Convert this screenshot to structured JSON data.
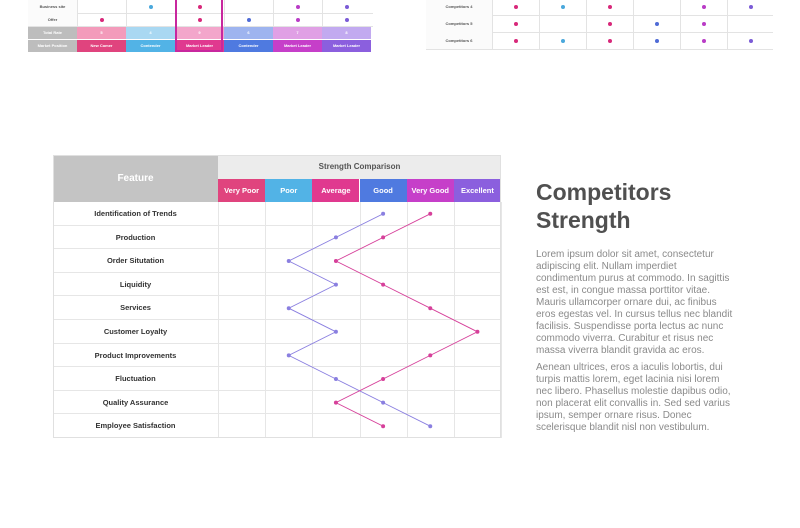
{
  "top_left_table": {
    "rows": [
      {
        "label": "Business site",
        "dots": [
          null,
          "#4aa8dc",
          "#d8287a",
          null,
          "#b93cc6",
          "#7b5bd6"
        ]
      },
      {
        "label": "Offer",
        "dots": [
          "#d8287a",
          null,
          "#d8287a",
          "#4f6bd6",
          "#b93cc6",
          "#7b5bd6"
        ]
      }
    ],
    "total_rate": {
      "label": "Total Rate",
      "values": [
        "5",
        "4",
        "9",
        "6",
        "7",
        "8"
      ]
    },
    "market_position": {
      "label": "Market Position",
      "values": [
        "New Comer",
        "Contender",
        "Market Leader",
        "Contender",
        "Market Leader",
        "Market Leader"
      ]
    },
    "colors": [
      "#e0447e",
      "#52b3e6",
      "#e0398f",
      "#4f7ae0",
      "#c63fc9",
      "#8b5fde"
    ],
    "light_colors": [
      "#f39bbb",
      "#a9d8f2",
      "#f3a6cb",
      "#9eb4ef",
      "#e0a0e5",
      "#c2aaf0"
    ]
  },
  "top_right_table": {
    "rows": [
      {
        "label": "Competitors 4",
        "dots": [
          "#d8287a",
          "#4aa8dc",
          "#d8287a",
          null,
          "#b93cc6",
          "#7b5bd6"
        ]
      },
      {
        "label": "Competitors 5",
        "dots": [
          "#d8287a",
          null,
          "#d8287a",
          "#4f6bd6",
          "#b93cc6",
          null
        ]
      },
      {
        "label": "Competitors 6",
        "dots": [
          "#d8287a",
          "#4aa8dc",
          "#d8287a",
          "#4f6bd6",
          "#b93cc6",
          "#7b5bd6"
        ]
      }
    ]
  },
  "main_table": {
    "feature_header": "Feature",
    "comparison_header": "Strength Comparison",
    "levels": [
      {
        "label": "Very Poor",
        "color": "#e0447e"
      },
      {
        "label": "Poor",
        "color": "#52b3e6"
      },
      {
        "label": "Average",
        "color": "#e0398f"
      },
      {
        "label": "Good",
        "color": "#4f7ae0"
      },
      {
        "label": "Very Good",
        "color": "#c63fc9"
      },
      {
        "label": "Excellent",
        "color": "#8b5fde"
      }
    ],
    "features": [
      "Identification of Trends",
      "Production",
      "Order Situtation",
      "Liquidity",
      "Services",
      "Customer Loyalty",
      "Product Improvements",
      "Fluctuation",
      "Quality Assurance",
      "Employee Satisfaction"
    ],
    "series": [
      {
        "color": "#8a7fe0",
        "levels": [
          4,
          3,
          2,
          3,
          2,
          3,
          2,
          3,
          4,
          5
        ]
      },
      {
        "color": "#d6409a",
        "levels": [
          5,
          4,
          3,
          4,
          5,
          6,
          5,
          4,
          3,
          4
        ]
      }
    ]
  },
  "side_text": {
    "title_line1": "Competitors",
    "title_line2": "Strength",
    "paragraph1": "Lorem ipsum dolor sit amet, consectetur adipiscing elit. Nullam imperdiet condimentum purus at commodo. In sagittis est est, in congue massa porttitor vitae. Mauris ullamcorper ornare dui, ac finibus eros egestas vel. In cursus tellus nec blandit facilisis. Suspendisse porta lectus ac nunc commodo viverra. Curabitur et risus nec massa viverra blandit gravida ac eros.",
    "paragraph2": "Aenean ultrices, eros a iaculis lobortis, dui turpis mattis lorem, eget lacinia nisi lorem nec libero. Phasellus molestie dapibus odio, non placerat elit convallis in. Sed sed varius ipsum, semper ornare risus. Donec scelerisque blandit nisl non vestibulum."
  }
}
